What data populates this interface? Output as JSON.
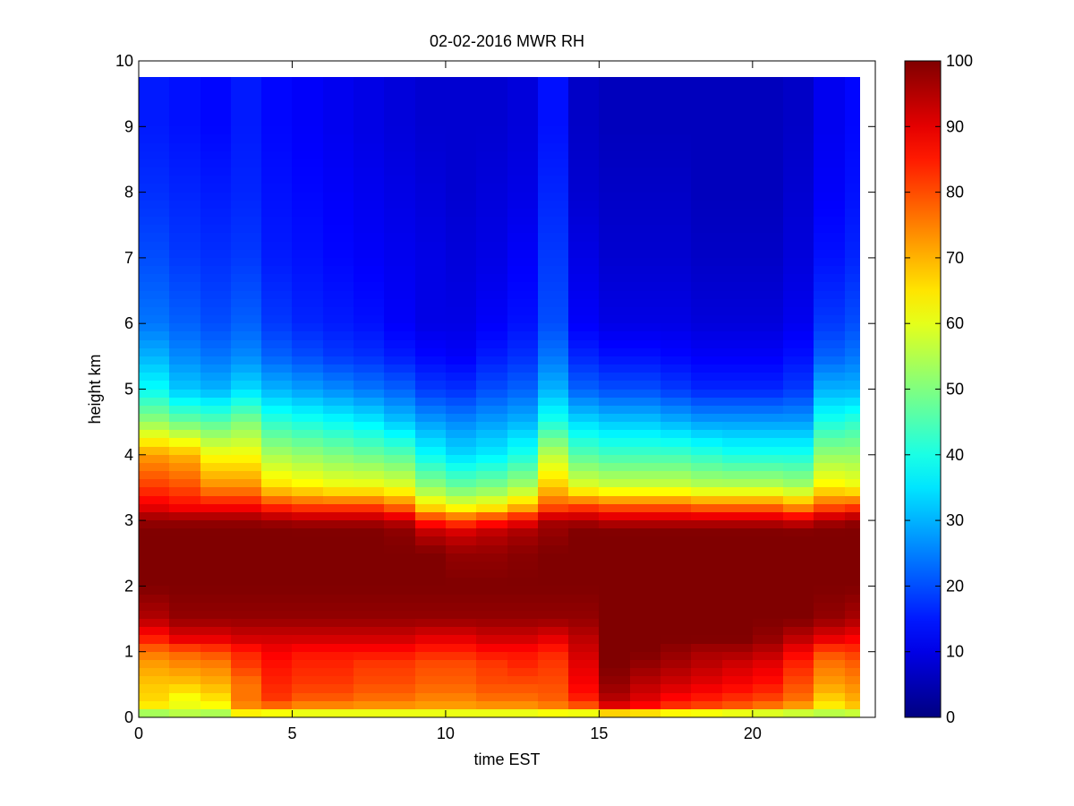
{
  "chart_data": {
    "type": "heatmap",
    "title": "02-02-2016 MWR RH",
    "xlabel": "time EST",
    "ylabel": "height km",
    "xlim": [
      0,
      24
    ],
    "ylim": [
      0,
      10
    ],
    "x_tick_labels": [
      "0",
      "5",
      "10",
      "15",
      "20"
    ],
    "x_ticks": [
      0,
      5,
      10,
      15,
      20
    ],
    "y_tick_labels": [
      "0",
      "1",
      "2",
      "3",
      "4",
      "5",
      "6",
      "7",
      "8",
      "9",
      "10"
    ],
    "y_ticks": [
      0,
      1,
      2,
      3,
      4,
      5,
      6,
      7,
      8,
      9,
      10
    ],
    "colorbar": {
      "range": [
        0,
        100
      ],
      "tick_labels": [
        "0",
        "10",
        "20",
        "30",
        "40",
        "50",
        "60",
        "70",
        "80",
        "90",
        "100"
      ],
      "ticks": [
        0,
        10,
        20,
        30,
        40,
        50,
        60,
        70,
        80,
        90,
        100
      ],
      "colormap": "jet"
    },
    "time_hours": [
      0,
      1,
      2,
      3,
      4,
      5,
      6,
      7,
      8,
      9,
      10,
      11,
      12,
      13,
      14,
      15,
      16,
      17,
      18,
      19,
      20,
      21,
      22,
      23
    ],
    "data_x_range": [
      0,
      23.5
    ],
    "data_y_range": [
      0,
      9.75
    ],
    "profile_heights_km": [
      0,
      0.1,
      0.25,
      0.5,
      0.8,
      1.0,
      1.2,
      1.5,
      2.0,
      2.5,
      2.8,
      3.0,
      3.2,
      3.5,
      4.0,
      4.5,
      5.0,
      5.5,
      6.0,
      7.0,
      8.0,
      9.0,
      9.75
    ],
    "profiles_rh_percent": [
      [
        40,
        62,
        66,
        68,
        72,
        76,
        85,
        95,
        100,
        100,
        100,
        98,
        90,
        82,
        72,
        52,
        38,
        30,
        24,
        20,
        17,
        15,
        15
      ],
      [
        45,
        62,
        60,
        68,
        74,
        78,
        90,
        98,
        100,
        100,
        100,
        98,
        88,
        80,
        70,
        48,
        32,
        26,
        22,
        18,
        16,
        14,
        14
      ],
      [
        45,
        60,
        64,
        70,
        75,
        80,
        90,
        98,
        100,
        100,
        100,
        98,
        88,
        74,
        62,
        46,
        30,
        24,
        20,
        17,
        15,
        13,
        13
      ],
      [
        50,
        72,
        76,
        76,
        82,
        84,
        92,
        98,
        100,
        100,
        100,
        98,
        88,
        74,
        62,
        50,
        34,
        26,
        22,
        18,
        16,
        15,
        15
      ],
      [
        45,
        72,
        82,
        84,
        86,
        88,
        92,
        98,
        100,
        100,
        100,
        97,
        84,
        66,
        54,
        42,
        30,
        22,
        18,
        15,
        14,
        13,
        13
      ],
      [
        45,
        70,
        78,
        82,
        84,
        86,
        92,
        98,
        100,
        100,
        100,
        96,
        82,
        64,
        52,
        40,
        28,
        20,
        16,
        14,
        13,
        12,
        12
      ],
      [
        45,
        70,
        78,
        82,
        84,
        86,
        92,
        98,
        100,
        100,
        100,
        96,
        82,
        62,
        50,
        38,
        26,
        18,
        15,
        13,
        12,
        11,
        11
      ],
      [
        45,
        70,
        76,
        80,
        82,
        86,
        92,
        98,
        100,
        100,
        100,
        96,
        82,
        62,
        48,
        36,
        24,
        17,
        14,
        12,
        11,
        10,
        10
      ],
      [
        45,
        70,
        76,
        80,
        82,
        86,
        92,
        98,
        100,
        100,
        99,
        94,
        78,
        60,
        46,
        32,
        22,
        15,
        12,
        11,
        10,
        9,
        9
      ],
      [
        45,
        70,
        74,
        78,
        80,
        84,
        90,
        98,
        100,
        100,
        94,
        84,
        66,
        52,
        38,
        28,
        18,
        13,
        10,
        10,
        9,
        8,
        8
      ],
      [
        45,
        70,
        74,
        78,
        80,
        84,
        90,
        98,
        100,
        98,
        92,
        80,
        62,
        48,
        34,
        26,
        17,
        12,
        10,
        9,
        8,
        8,
        8
      ],
      [
        45,
        70,
        76,
        80,
        82,
        86,
        92,
        98,
        100,
        98,
        94,
        84,
        64,
        50,
        36,
        28,
        20,
        15,
        12,
        10,
        9,
        8,
        8
      ],
      [
        45,
        70,
        76,
        80,
        84,
        86,
        92,
        98,
        100,
        99,
        96,
        88,
        70,
        54,
        40,
        30,
        22,
        17,
        14,
        12,
        10,
        9,
        9
      ],
      [
        45,
        72,
        78,
        80,
        82,
        84,
        90,
        98,
        100,
        100,
        98,
        96,
        80,
        68,
        56,
        40,
        30,
        24,
        20,
        18,
        16,
        14,
        14
      ],
      [
        40,
        74,
        84,
        88,
        90,
        92,
        94,
        98,
        100,
        100,
        100,
        96,
        82,
        60,
        46,
        34,
        22,
        16,
        12,
        10,
        8,
        7,
        7
      ],
      [
        35,
        86,
        94,
        98,
        100,
        100,
        100,
        100,
        100,
        100,
        100,
        94,
        80,
        58,
        44,
        32,
        20,
        14,
        10,
        8,
        7,
        6,
        6
      ],
      [
        35,
        84,
        90,
        94,
        98,
        100,
        100,
        100,
        100,
        100,
        100,
        94,
        80,
        58,
        44,
        32,
        20,
        14,
        10,
        8,
        7,
        6,
        6
      ],
      [
        35,
        80,
        86,
        92,
        96,
        98,
        100,
        100,
        100,
        100,
        100,
        94,
        80,
        58,
        44,
        30,
        18,
        13,
        10,
        8,
        7,
        6,
        6
      ],
      [
        35,
        78,
        84,
        90,
        94,
        96,
        100,
        100,
        100,
        100,
        100,
        94,
        78,
        56,
        42,
        28,
        16,
        12,
        9,
        7,
        6,
        6,
        6
      ],
      [
        35,
        76,
        82,
        88,
        92,
        96,
        100,
        100,
        100,
        100,
        100,
        94,
        78,
        56,
        40,
        28,
        16,
        12,
        9,
        7,
        6,
        6,
        6
      ],
      [
        38,
        72,
        80,
        86,
        90,
        94,
        98,
        100,
        100,
        100,
        100,
        94,
        78,
        56,
        40,
        28,
        16,
        12,
        9,
        7,
        6,
        6,
        6
      ],
      [
        40,
        68,
        76,
        80,
        84,
        88,
        94,
        100,
        100,
        100,
        100,
        92,
        74,
        54,
        40,
        28,
        18,
        14,
        11,
        9,
        8,
        7,
        7
      ],
      [
        45,
        62,
        66,
        72,
        76,
        80,
        90,
        98,
        100,
        100,
        100,
        96,
        80,
        64,
        52,
        40,
        30,
        22,
        18,
        14,
        12,
        11,
        11
      ],
      [
        42,
        66,
        70,
        74,
        78,
        82,
        88,
        96,
        100,
        100,
        100,
        98,
        82,
        62,
        52,
        42,
        30,
        24,
        20,
        16,
        14,
        13,
        13
      ]
    ]
  }
}
